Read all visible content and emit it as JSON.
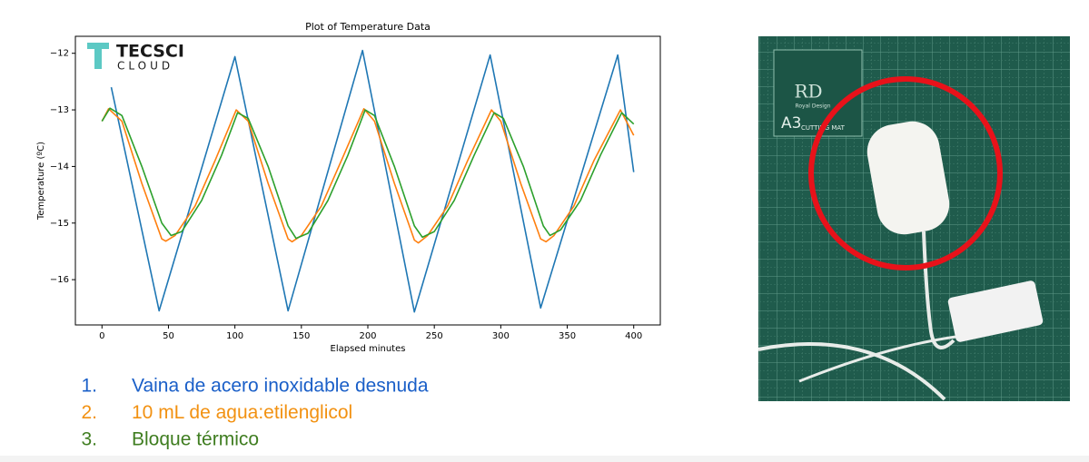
{
  "chart_data": {
    "type": "line",
    "title": "Plot of Temperature Data",
    "xlabel": "Elapsed minutes",
    "ylabel": "Temperature (ºC)",
    "xlim": [
      -20,
      420
    ],
    "ylim": [
      -16.8,
      -11.7
    ],
    "xticks": [
      0,
      50,
      100,
      150,
      200,
      250,
      300,
      350,
      400
    ],
    "yticks": [
      {
        "value": -16,
        "label": "−16"
      },
      {
        "value": -15,
        "label": "−15"
      },
      {
        "value": -14,
        "label": "−14"
      },
      {
        "value": -13,
        "label": "−13"
      },
      {
        "value": -12,
        "label": "−12"
      }
    ],
    "legend_numbers": [
      "1.",
      "2.",
      "3."
    ],
    "series": [
      {
        "name": "Vaina de acero inoxidable desnuda",
        "color": "#1f77b4",
        "legend_color": "#1a5fc8",
        "x": [
          7,
          43,
          100,
          140,
          196,
          235,
          292,
          330,
          388,
          400
        ],
        "values": [
          -12.6,
          -16.55,
          -12.06,
          -16.55,
          -11.95,
          -16.57,
          -12.03,
          -16.5,
          -12.03,
          -14.1
        ]
      },
      {
        "name": "10 mL de agua:etilenglicol",
        "color": "#ff7f0e",
        "legend_color": "#f29111",
        "x": [
          0,
          5,
          15,
          30,
          45,
          48,
          55,
          70,
          85,
          101,
          110,
          125,
          140,
          143,
          150,
          165,
          180,
          197,
          205,
          220,
          235,
          238,
          245,
          260,
          275,
          293,
          300,
          315,
          330,
          334,
          340,
          355,
          370,
          390,
          400
        ],
        "values": [
          -13.2,
          -12.98,
          -13.2,
          -14.3,
          -15.28,
          -15.32,
          -15.22,
          -14.7,
          -13.9,
          -13.0,
          -13.2,
          -14.3,
          -15.28,
          -15.33,
          -15.22,
          -14.7,
          -13.9,
          -12.98,
          -13.2,
          -14.3,
          -15.3,
          -15.35,
          -15.22,
          -14.7,
          -13.9,
          -13.0,
          -13.2,
          -14.3,
          -15.28,
          -15.33,
          -15.22,
          -14.7,
          -13.9,
          -13.0,
          -13.45
        ]
      },
      {
        "name": "Bloque térmico",
        "color": "#2ca02c",
        "legend_color": "#3f7d20",
        "x": [
          0,
          6,
          15,
          30,
          45,
          52,
          60,
          75,
          90,
          102,
          110,
          125,
          140,
          146,
          155,
          170,
          185,
          198,
          205,
          220,
          235,
          241,
          250,
          265,
          280,
          295,
          302,
          317,
          332,
          337,
          345,
          360,
          375,
          391,
          400
        ],
        "values": [
          -13.2,
          -12.97,
          -13.1,
          -14.0,
          -15.0,
          -15.22,
          -15.15,
          -14.6,
          -13.8,
          -13.05,
          -13.15,
          -14.0,
          -15.05,
          -15.27,
          -15.18,
          -14.6,
          -13.8,
          -13.0,
          -13.1,
          -14.0,
          -15.05,
          -15.25,
          -15.15,
          -14.6,
          -13.8,
          -13.05,
          -13.15,
          -14.0,
          -15.05,
          -15.22,
          -15.12,
          -14.6,
          -13.8,
          -13.05,
          -13.25
        ]
      }
    ]
  },
  "logo": {
    "text": "TECSCI",
    "subtext": "CLOUD"
  },
  "photo": {
    "brand": "RD",
    "brand_sub": "Royal Design",
    "size": "A3",
    "mat": "CUTTING MAT"
  }
}
